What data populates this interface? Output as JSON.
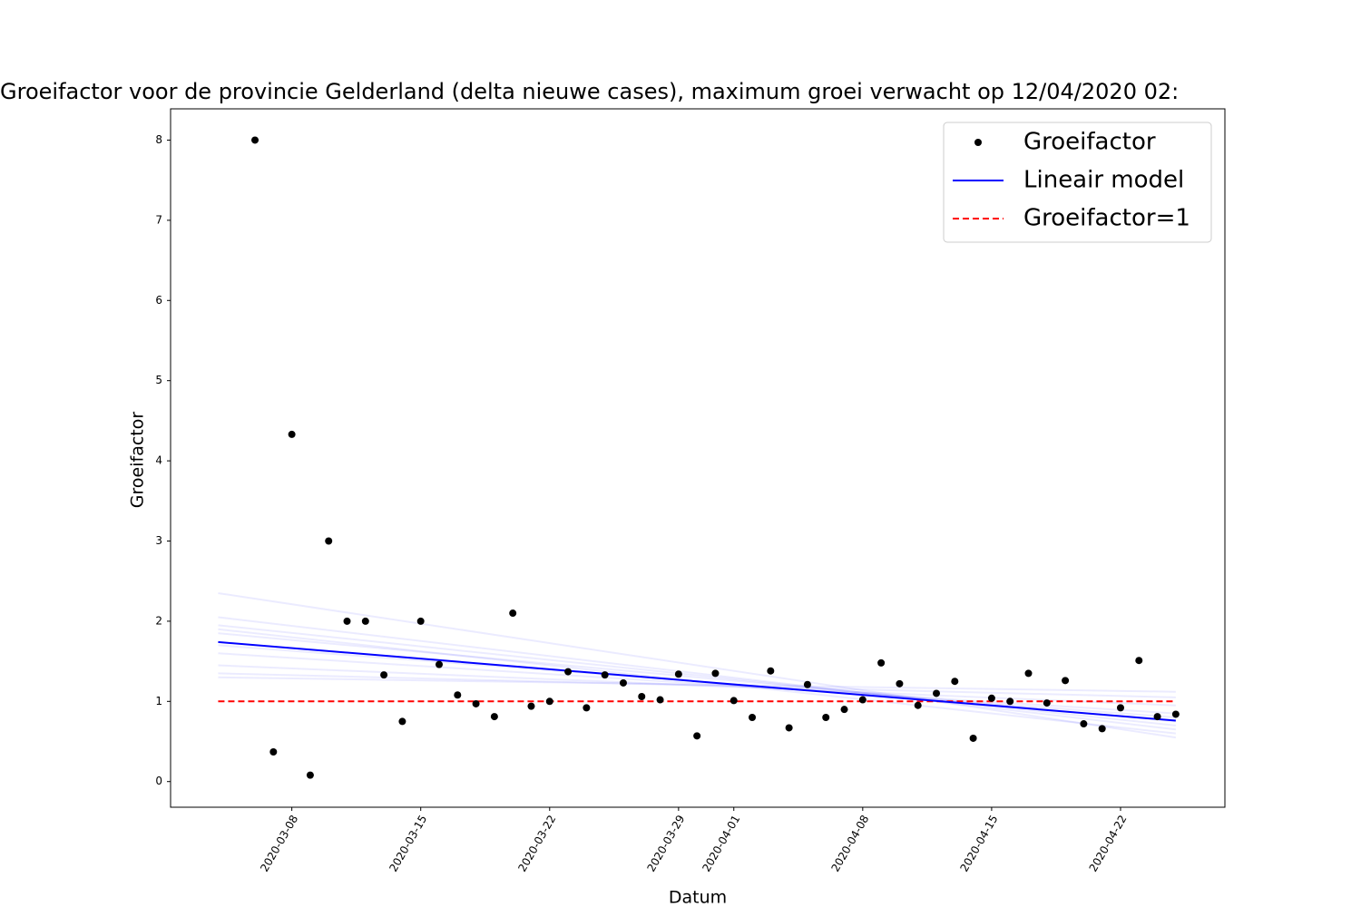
{
  "chart_data": {
    "type": "scatter",
    "title": "Groeifactor voor de provincie Gelderland (delta nieuwe cases), maximum groei verwacht op 12/04/2020 02:",
    "xlabel": "Datum",
    "ylabel": "Groeifactor",
    "xlim": [
      "2020-03-01T10:00",
      "2020-04-27T16:00"
    ],
    "xticks": [
      "2020-03-08",
      "2020-03-15",
      "2020-03-22",
      "2020-03-29",
      "2020-04-01",
      "2020-04-08",
      "2020-04-15",
      "2020-04-22"
    ],
    "ylim": [
      -0.32,
      8.39
    ],
    "yticks": [
      0,
      1,
      2,
      3,
      4,
      5,
      6,
      7,
      8
    ],
    "legend": "upper right",
    "series": [
      {
        "name": "Groeifactor",
        "style": "points",
        "color": "#000000",
        "x": [
          "2020-03-06",
          "2020-03-07",
          "2020-03-08",
          "2020-03-09",
          "2020-03-10",
          "2020-03-11",
          "2020-03-12",
          "2020-03-13",
          "2020-03-14",
          "2020-03-15",
          "2020-03-16",
          "2020-03-17",
          "2020-03-18",
          "2020-03-19",
          "2020-03-20",
          "2020-03-21",
          "2020-03-22",
          "2020-03-23",
          "2020-03-24",
          "2020-03-25",
          "2020-03-26",
          "2020-03-27",
          "2020-03-28",
          "2020-03-29",
          "2020-03-30",
          "2020-03-31",
          "2020-04-01",
          "2020-04-02",
          "2020-04-03",
          "2020-04-04",
          "2020-04-05",
          "2020-04-06",
          "2020-04-07",
          "2020-04-08",
          "2020-04-09",
          "2020-04-10",
          "2020-04-11",
          "2020-04-12",
          "2020-04-13",
          "2020-04-14",
          "2020-04-15",
          "2020-04-16",
          "2020-04-17",
          "2020-04-18",
          "2020-04-19",
          "2020-04-20",
          "2020-04-21",
          "2020-04-22",
          "2020-04-23",
          "2020-04-24",
          "2020-04-25"
        ],
        "values": [
          8.0,
          0.37,
          4.33,
          0.08,
          3.0,
          2.0,
          2.0,
          1.33,
          0.75,
          2.0,
          1.46,
          1.08,
          0.97,
          0.81,
          2.1,
          0.94,
          1.0,
          1.37,
          0.92,
          1.33,
          1.23,
          1.06,
          1.02,
          1.34,
          0.57,
          1.35,
          1.01,
          0.8,
          1.38,
          0.67,
          1.21,
          0.8,
          0.9,
          1.02,
          1.48,
          1.22,
          0.95,
          1.1,
          1.25,
          0.54,
          1.04,
          1.0,
          1.35,
          0.98,
          1.26,
          0.72,
          0.66,
          0.92,
          1.51,
          0.81,
          0.84
        ]
      },
      {
        "name": "Lineair model",
        "style": "solid",
        "color": "#0000ff",
        "x": [
          "2020-03-04",
          "2020-04-25"
        ],
        "values": [
          1.74,
          0.76
        ]
      },
      {
        "name": "Groeifactor=1",
        "style": "dashed",
        "color": "#ff0000",
        "x": [
          "2020-03-04",
          "2020-04-25"
        ],
        "values": [
          1,
          1
        ]
      }
    ],
    "samples": {
      "color": "#0000ff",
      "opacity": 0.08,
      "lines": [
        [
          2.35,
          0.55
        ],
        [
          2.05,
          0.65
        ],
        [
          1.95,
          0.7
        ],
        [
          1.85,
          0.75
        ],
        [
          1.6,
          0.85
        ],
        [
          1.45,
          0.95
        ],
        [
          1.35,
          1.05
        ],
        [
          1.3,
          1.12
        ],
        [
          1.9,
          0.6
        ],
        [
          1.7,
          0.8
        ]
      ]
    }
  }
}
